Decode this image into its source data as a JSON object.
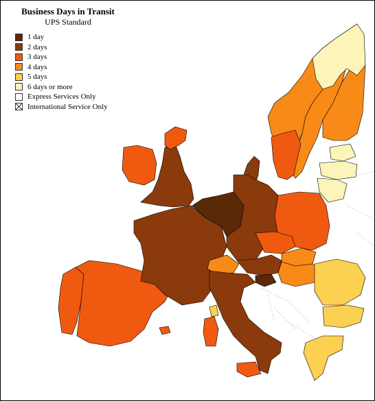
{
  "map": {
    "title": "Business Days in Transit",
    "subtitle": "UPS Standard"
  },
  "legend": [
    {
      "label": "1 day",
      "color": "#5a2a08",
      "pattern": "solid"
    },
    {
      "label": "2 days",
      "color": "#8b3a0c",
      "pattern": "solid"
    },
    {
      "label": "3 days",
      "color": "#f05a10",
      "pattern": "solid"
    },
    {
      "label": "4 days",
      "color": "#f88a18",
      "pattern": "solid"
    },
    {
      "label": "5 days",
      "color": "#fcd050",
      "pattern": "solid"
    },
    {
      "label": "6 days or more",
      "color": "#fcf4b8",
      "pattern": "solid"
    },
    {
      "label": "Express Services Only",
      "color": "#ffffff",
      "pattern": "solid"
    },
    {
      "label": "International Service Only",
      "color": "#ffffff",
      "pattern": "cross"
    }
  ]
}
